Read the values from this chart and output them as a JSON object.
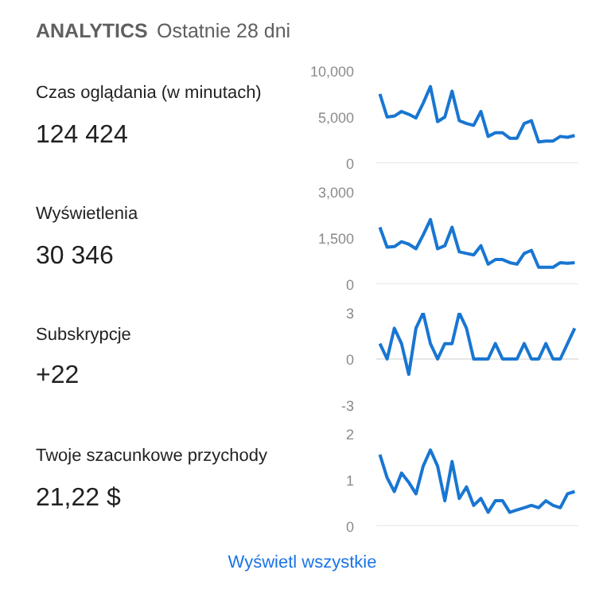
{
  "chart_data": [
    {
      "type": "other",
      "title": "ANALYTICS",
      "subtitle": "Ostatnie 28 dni"
    },
    {
      "type": "other",
      "title": "Czas oglądania (w minutach)",
      "subtitle": "124 424"
    },
    {
      "type": "line",
      "categories": [
        null,
        null,
        null,
        null,
        null,
        null,
        null,
        null,
        null,
        null,
        null,
        null,
        null,
        null,
        null,
        null,
        null,
        null,
        null,
        null,
        null,
        null,
        null,
        null,
        null,
        null,
        null,
        null
      ],
      "color": "#1976d2",
      "values": [
        7500,
        5000,
        5100,
        5600,
        5300,
        4900,
        6500,
        8300,
        4500,
        5000,
        7800,
        4600,
        4300,
        4100,
        5600,
        2900,
        3300,
        3300,
        2700,
        2700,
        4300,
        4600,
        2300,
        2400,
        2400,
        2900,
        2800,
        3000
      ],
      "ylim": [
        0,
        10000
      ],
      "yticks": [
        0,
        {
          "value": 5000,
          "label": "5,000"
        },
        {
          "value": 10000,
          "label": "10,000"
        }
      ],
      "ref_lines": [
        {
          "axis": "y",
          "value": 0,
          "color": "#e6e6e6"
        }
      ],
      "tick_labels": "y"
    },
    {
      "type": "other",
      "title": "Wyświetlenia",
      "subtitle": "30 346"
    },
    {
      "type": "line",
      "categories": [
        null,
        null,
        null,
        null,
        null,
        null,
        null,
        null,
        null,
        null,
        null,
        null,
        null,
        null,
        null,
        null,
        null,
        null,
        null,
        null,
        null,
        null,
        null,
        null,
        null,
        null,
        null,
        null
      ],
      "color": "#1976d2",
      "values": [
        1850,
        1200,
        1220,
        1380,
        1300,
        1150,
        1600,
        2100,
        1150,
        1250,
        1850,
        1050,
        1000,
        950,
        1250,
        650,
        800,
        800,
        700,
        650,
        1000,
        1100,
        550,
        550,
        550,
        700,
        680,
        700
      ],
      "ylim": [
        0,
        3000
      ],
      "yticks": [
        0,
        {
          "value": 1500,
          "label": "1,500"
        },
        {
          "value": 3000,
          "label": "3,000"
        }
      ],
      "ref_lines": [
        {
          "axis": "y",
          "value": 0,
          "color": "#e6e6e6"
        }
      ],
      "tick_labels": "y"
    },
    {
      "type": "other",
      "title": "Subskrypcje",
      "subtitle": "+22"
    },
    {
      "type": "line",
      "categories": [
        null,
        null,
        null,
        null,
        null,
        null,
        null,
        null,
        null,
        null,
        null,
        null,
        null,
        null,
        null,
        null,
        null,
        null,
        null,
        null,
        null,
        null,
        null,
        null,
        null,
        null,
        null,
        null
      ],
      "color": "#1976d2",
      "values": [
        1,
        0,
        2,
        1,
        -1,
        2,
        3,
        1,
        0,
        1,
        1,
        3,
        2,
        0,
        0,
        0,
        1,
        0,
        0,
        0,
        1,
        0,
        0,
        1,
        0,
        0,
        1,
        2
      ],
      "ylim": [
        -3,
        3
      ],
      "yticks": [
        -3,
        0,
        3
      ],
      "ref_lines": [
        {
          "axis": "y",
          "value": 0,
          "color": "#e6e6e6"
        }
      ],
      "tick_labels": "y"
    },
    {
      "type": "other",
      "title": "Twoje szacunkowe przychody",
      "subtitle": "21,22 $"
    },
    {
      "type": "line",
      "categories": [
        null,
        null,
        null,
        null,
        null,
        null,
        null,
        null,
        null,
        null,
        null,
        null,
        null,
        null,
        null,
        null,
        null,
        null,
        null,
        null,
        null,
        null,
        null,
        null,
        null,
        null,
        null,
        null
      ],
      "color": "#1976d2",
      "values": [
        1.55,
        1.05,
        0.75,
        1.15,
        0.95,
        0.7,
        1.3,
        1.65,
        1.3,
        0.55,
        1.4,
        0.6,
        0.85,
        0.45,
        0.6,
        0.3,
        0.55,
        0.55,
        0.3,
        0.35,
        0.4,
        0.45,
        0.4,
        0.55,
        0.45,
        0.4,
        0.7,
        0.75
      ],
      "ylim": [
        0,
        2
      ],
      "yticks": [
        0,
        1,
        2
      ],
      "ref_lines": [
        {
          "axis": "y",
          "value": 0,
          "color": "#e6e6e6"
        }
      ],
      "tick_labels": "y"
    },
    {
      "type": "other",
      "annotations": [
        "Wyświetl wszystkie"
      ]
    }
  ]
}
